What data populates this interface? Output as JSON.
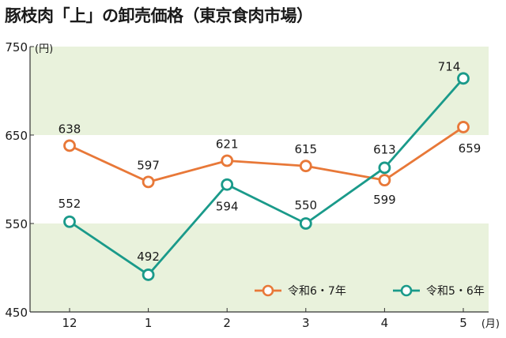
{
  "chart_data": {
    "type": "line",
    "title": "豚枝肉「上」の卸売価格（東京食肉市場）",
    "categories": [
      "12",
      "1",
      "2",
      "3",
      "4",
      "5"
    ],
    "y_unit": "(円)",
    "x_unit": "(月)",
    "ylim": [
      450,
      750
    ],
    "yticks": [
      "750",
      "650",
      "550",
      "450"
    ],
    "background_bands": [
      [
        650,
        750
      ],
      [
        450,
        550
      ]
    ],
    "grid": false,
    "legend_position": "bottom-right",
    "series": [
      {
        "name": "令和6・7年",
        "color": "#e87838",
        "values": [
          638,
          597,
          621,
          615,
          599,
          659
        ],
        "labels": [
          "638",
          "597",
          "621",
          "615",
          "599",
          "659"
        ]
      },
      {
        "name": "令和5・6年",
        "color": "#1a9a8a",
        "values": [
          552,
          492,
          594,
          550,
          613,
          714
        ],
        "labels": [
          "552",
          "492",
          "594",
          "550",
          "613",
          "714"
        ]
      }
    ]
  },
  "colors": {
    "band": "#e9f2dc",
    "axis": "#333333"
  }
}
